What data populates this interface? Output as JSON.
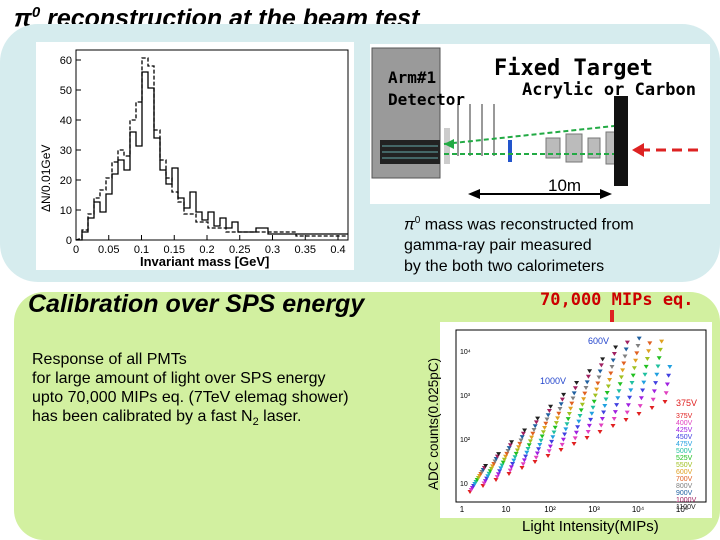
{
  "title_symbol": "π",
  "title_sup": "0",
  "title_rest": " reconstruction at the beam test",
  "histogram": {
    "ylabel": "ΔN/0.01GeV",
    "xlabel": "Invariant mass [GeV]",
    "yticks": [
      "0",
      "10",
      "20",
      "30",
      "40",
      "50",
      "60"
    ],
    "xticks": [
      "0",
      "0.05",
      "0.1",
      "0.15",
      "0.2",
      "0.25",
      "0.3",
      "0.35",
      "0.4"
    ]
  },
  "detector": {
    "arm_label": "Arm#1",
    "detector_label": "Detector",
    "fixed_target": "Fixed Target",
    "target_material": "Acrylic or Carbon",
    "distance": "10m"
  },
  "pi0_text": {
    "symbol": "π",
    "sup": "0",
    "line1_rest": " mass was reconstructed from",
    "line2": "gamma-ray pair measured",
    "line3": "by the both two calorimeters"
  },
  "calibration": {
    "title": "Calibration over SPS energy",
    "line1": "Response of all PMTs",
    "line2": "for large amount of light over SPS energy",
    "line3": "upto 70,000 MIPs eq. (7TeV elemag shower)",
    "line4_pre": "has been calibrated  by a fast N",
    "line4_sub": "2",
    "line4_post": " laser."
  },
  "adc_plot": {
    "mips_label": "70,000 MIPs eq.",
    "ylabel": "ADC counts(0.025pC)",
    "xlabel": "Light Intensity(MIPs)",
    "xticks": [
      "1",
      "10",
      "10²",
      "10³",
      "10⁴",
      "10⁵"
    ],
    "yticks": [
      "10",
      "10²",
      "10³",
      "10⁴"
    ],
    "top_label": "600V",
    "mid_label": "1000V",
    "side_label": "375V",
    "legend": [
      "375V",
      "400V",
      "425V",
      "450V",
      "475V",
      "500V",
      "525V",
      "550V",
      "600V",
      "700V",
      "800V",
      "900V",
      "1000V",
      "1100V"
    ],
    "legend_colors": [
      "#e02020",
      "#e040c0",
      "#a020e0",
      "#4040e0",
      "#20a0e0",
      "#20c0a0",
      "#20c020",
      "#a0c020",
      "#e0a020",
      "#e06020",
      "#808080",
      "#2060a0",
      "#a02060",
      "#202020"
    ]
  }
}
